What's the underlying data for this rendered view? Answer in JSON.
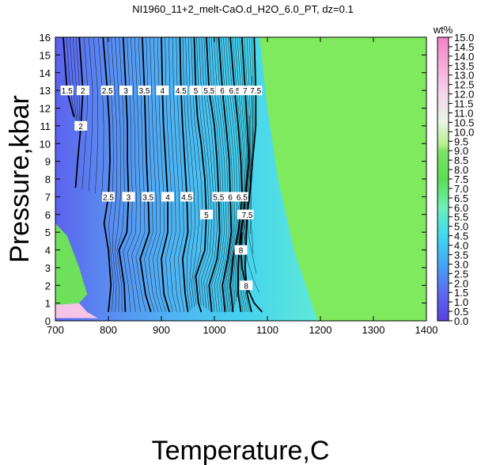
{
  "chart_data": {
    "type": "heatmap",
    "title": "NI1960_11+2_melt-CaO.d_H2O_6.0_PT, dz=0.1",
    "xlabel": "Temperature,C",
    "ylabel": "Pressure,kbar",
    "xlim": [
      700,
      1400
    ],
    "ylim": [
      0,
      16
    ],
    "x_ticks": [
      "700",
      "800",
      "900",
      "1000",
      "1100",
      "1200",
      "1300",
      "1400"
    ],
    "y_ticks": [
      "0",
      "1",
      "2",
      "3",
      "4",
      "5",
      "6",
      "7",
      "8",
      "9",
      "10",
      "11",
      "12",
      "13",
      "14",
      "15",
      "16"
    ],
    "colorbar": {
      "unit": "wt%",
      "range": [
        0.0,
        15.0
      ],
      "ticks": [
        "0.0",
        "0.5",
        "1.0",
        "1.5",
        "2.0",
        "2.5",
        "3.0",
        "3.5",
        "4.0",
        "4.5",
        "5.0",
        "5.5",
        "6.0",
        "6.5",
        "7.0",
        "7.5",
        "8.0",
        "8.5",
        "9.0",
        "9.5",
        "10.0",
        "10.5",
        "11.0",
        "11.5",
        "12.0",
        "12.5",
        "13.0",
        "13.5",
        "14.0",
        "14.5",
        "15.0"
      ]
    },
    "saturated_region": {
      "value": 6.0,
      "boundary_T_at_P": [
        [
          1195,
          0
        ],
        [
          1150,
          4
        ],
        [
          1120,
          8
        ],
        [
          1100,
          12
        ],
        [
          1085,
          16
        ]
      ]
    },
    "contours": [
      {
        "label": "1.5",
        "points": [
          [
            715,
            16
          ],
          [
            722,
            13
          ],
          [
            735,
            11.5
          ]
        ]
      },
      {
        "label": "2",
        "points": [
          [
            745,
            16
          ],
          [
            752,
            13
          ],
          [
            748,
            11
          ],
          [
            742,
            9
          ],
          [
            738,
            7.5
          ]
        ]
      },
      {
        "label": "2.5",
        "points": [
          [
            790,
            16
          ],
          [
            798,
            13
          ],
          [
            802,
            11
          ],
          [
            803,
            9
          ],
          [
            800,
            7
          ],
          [
            792,
            5.5
          ],
          [
            800,
            4
          ],
          [
            805,
            2
          ],
          [
            800,
            0.5
          ]
        ]
      },
      {
        "label": "3",
        "points": [
          [
            828,
            16
          ],
          [
            833,
            13
          ],
          [
            836,
            11
          ],
          [
            836,
            9
          ],
          [
            838,
            7
          ],
          [
            835,
            5
          ],
          [
            820,
            4
          ],
          [
            830,
            2
          ],
          [
            832,
            0.5
          ]
        ]
      },
      {
        "label": "3.5",
        "points": [
          [
            864,
            16
          ],
          [
            868,
            13
          ],
          [
            870,
            11
          ],
          [
            872,
            9
          ],
          [
            875,
            7
          ],
          [
            877,
            5
          ],
          [
            860,
            3.5
          ],
          [
            870,
            1.5
          ],
          [
            880,
            0.5
          ]
        ]
      },
      {
        "label": "4",
        "points": [
          [
            900,
            16
          ],
          [
            902,
            13
          ],
          [
            904,
            11
          ],
          [
            908,
            9
          ],
          [
            912,
            7
          ],
          [
            912,
            5
          ],
          [
            900,
            3.5
          ],
          [
            905,
            1.5
          ],
          [
            915,
            0.5
          ]
        ]
      },
      {
        "label": "4.5",
        "points": [
          [
            935,
            16
          ],
          [
            937,
            13
          ],
          [
            940,
            11
          ],
          [
            944,
            9
          ],
          [
            948,
            7
          ],
          [
            950,
            5
          ],
          [
            940,
            3.5
          ],
          [
            945,
            1.5
          ],
          [
            950,
            0.5
          ]
        ]
      },
      {
        "label": "5",
        "points": [
          [
            962,
            16
          ],
          [
            965,
            13
          ],
          [
            968,
            11.5
          ],
          [
            975,
            10
          ],
          [
            982,
            8
          ],
          [
            985,
            6
          ],
          [
            982,
            4
          ],
          [
            965,
            2.5
          ],
          [
            970,
            1
          ],
          [
            975,
            0.5
          ]
        ]
      },
      {
        "label": "5.5",
        "points": [
          [
            985,
            16
          ],
          [
            990,
            13
          ],
          [
            1000,
            11
          ],
          [
            1005,
            9
          ],
          [
            1008,
            7
          ],
          [
            1010,
            5
          ],
          [
            1005,
            3.5
          ],
          [
            990,
            2
          ],
          [
            995,
            0.5
          ]
        ]
      },
      {
        "label": "6",
        "points": [
          [
            1008,
            16
          ],
          [
            1015,
            13
          ],
          [
            1022,
            11
          ],
          [
            1028,
            9
          ],
          [
            1030,
            7
          ],
          [
            1032,
            5
          ],
          [
            1025,
            3.5
          ],
          [
            1015,
            2
          ],
          [
            1020,
            0.5
          ]
        ]
      },
      {
        "label": "6.5",
        "points": [
          [
            1030,
            16
          ],
          [
            1038,
            13
          ],
          [
            1045,
            11
          ],
          [
            1050,
            9
          ],
          [
            1052,
            7
          ],
          [
            1045,
            5
          ],
          [
            1035,
            3.5
          ],
          [
            1030,
            2
          ],
          [
            1035,
            0.5
          ]
        ]
      },
      {
        "label": "7",
        "points": [
          [
            1052,
            16
          ],
          [
            1058,
            13
          ],
          [
            1062,
            11
          ],
          [
            1065,
            9
          ],
          [
            1060,
            7.5
          ],
          [
            1055,
            6
          ],
          [
            1048,
            4.5
          ],
          [
            1045,
            3
          ],
          [
            1045,
            1.5
          ],
          [
            1050,
            0.5
          ]
        ]
      },
      {
        "label": "7.5",
        "points": [
          [
            1075,
            16
          ],
          [
            1078,
            13
          ],
          [
            1078,
            11
          ],
          [
            1072,
            9
          ],
          [
            1068,
            7.5
          ],
          [
            1062,
            6
          ],
          [
            1060,
            4.5
          ],
          [
            1058,
            3
          ],
          [
            1062,
            1.5
          ],
          [
            1070,
            0.5
          ]
        ]
      },
      {
        "label": "8",
        "points": [
          [
            1052,
            5
          ],
          [
            1050,
            4
          ],
          [
            1052,
            3
          ],
          [
            1060,
            2
          ],
          [
            1075,
            1
          ],
          [
            1090,
            0.5
          ]
        ]
      }
    ],
    "grid": false,
    "legend": "colorbar-right"
  }
}
